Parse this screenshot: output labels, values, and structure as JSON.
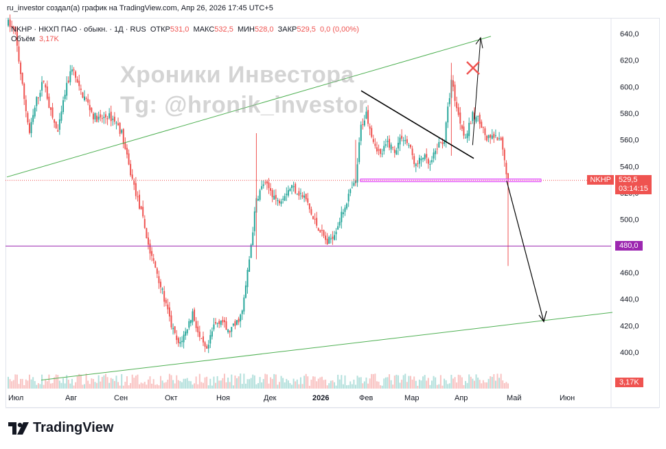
{
  "header": {
    "attribution": "ru_investor создал(а) график на TradingView.com, Апр 26, 2026 17:45 UTC+5"
  },
  "legend": {
    "symbol": "NKHP · НКХП ПАО · обыкн. · 1Д · RUS",
    "open_label": "ОТКР",
    "open": "531,0",
    "high_label": "МАКС",
    "high": "532,5",
    "low_label": "МИН",
    "low": "528,0",
    "close_label": "ЗАКР",
    "close": "529,5",
    "change": "0,0 (0,00%)",
    "volume_label": "Объём",
    "volume": "3,17K"
  },
  "watermark": {
    "line1": "Хроники Инвестора",
    "line2": "Tg: @hronik_investor"
  },
  "price_tags": {
    "ticker": "NKHP",
    "last": "529,5",
    "countdown": "03:14:15",
    "level": "480,0",
    "volume": "3,17K"
  },
  "footer": {
    "brand": "TradingView"
  },
  "colors": {
    "up": "#26a69a",
    "down": "#ef5350",
    "trend": "#4caf50",
    "level": "#9c27b0",
    "pink": "#e040fb",
    "accent": "#ef5350"
  },
  "chart_data": {
    "type": "candlestick",
    "symbol": "NKHP",
    "y_axis": {
      "min": 380,
      "max": 650,
      "ticks": [
        400,
        420,
        440,
        460,
        480,
        500,
        520,
        540,
        560,
        580,
        600,
        620,
        640
      ]
    },
    "y_tick_labels": [
      "400,0",
      "420,0",
      "440,0",
      "460,0",
      "480,0",
      "500,0",
      "520,0",
      "540,0",
      "560,0",
      "580,0",
      "600,0",
      "620,0",
      "640,0"
    ],
    "x_tick_labels": [
      "Июл",
      "Авг",
      "Сен",
      "Окт",
      "Ноя",
      "Дек",
      "2026",
      "Фев",
      "Мар",
      "Апр",
      "Май",
      "Июн"
    ],
    "close_path": [
      {
        "t": 0,
        "p": 648
      },
      {
        "t": 4,
        "p": 640
      },
      {
        "t": 8,
        "p": 600
      },
      {
        "t": 12,
        "p": 565
      },
      {
        "t": 16,
        "p": 590
      },
      {
        "t": 20,
        "p": 605
      },
      {
        "t": 24,
        "p": 580
      },
      {
        "t": 28,
        "p": 565
      },
      {
        "t": 32,
        "p": 595
      },
      {
        "t": 36,
        "p": 615
      },
      {
        "t": 40,
        "p": 598
      },
      {
        "t": 44,
        "p": 590
      },
      {
        "t": 48,
        "p": 578
      },
      {
        "t": 52,
        "p": 575
      },
      {
        "t": 56,
        "p": 578
      },
      {
        "t": 60,
        "p": 575
      },
      {
        "t": 64,
        "p": 565
      },
      {
        "t": 68,
        "p": 540
      },
      {
        "t": 72,
        "p": 520
      },
      {
        "t": 76,
        "p": 500
      },
      {
        "t": 80,
        "p": 475
      },
      {
        "t": 84,
        "p": 460
      },
      {
        "t": 88,
        "p": 440
      },
      {
        "t": 92,
        "p": 420
      },
      {
        "t": 96,
        "p": 405
      },
      {
        "t": 100,
        "p": 415
      },
      {
        "t": 104,
        "p": 430
      },
      {
        "t": 108,
        "p": 410
      },
      {
        "t": 112,
        "p": 400
      },
      {
        "t": 116,
        "p": 420
      },
      {
        "t": 120,
        "p": 425
      },
      {
        "t": 124,
        "p": 415
      },
      {
        "t": 128,
        "p": 420
      },
      {
        "t": 132,
        "p": 430
      },
      {
        "t": 136,
        "p": 470
      },
      {
        "t": 140,
        "p": 515
      },
      {
        "t": 144,
        "p": 527
      },
      {
        "t": 148,
        "p": 522
      },
      {
        "t": 152,
        "p": 513
      },
      {
        "t": 156,
        "p": 520
      },
      {
        "t": 160,
        "p": 525
      },
      {
        "t": 164,
        "p": 520
      },
      {
        "t": 168,
        "p": 515
      },
      {
        "t": 172,
        "p": 500
      },
      {
        "t": 176,
        "p": 492
      },
      {
        "t": 180,
        "p": 482
      },
      {
        "t": 184,
        "p": 490
      },
      {
        "t": 188,
        "p": 503
      },
      {
        "t": 192,
        "p": 518
      },
      {
        "t": 196,
        "p": 528
      },
      {
        "t": 199,
        "p": 570
      },
      {
        "t": 202,
        "p": 580
      },
      {
        "t": 206,
        "p": 560
      },
      {
        "t": 210,
        "p": 548
      },
      {
        "t": 214,
        "p": 558
      },
      {
        "t": 218,
        "p": 552
      },
      {
        "t": 222,
        "p": 563
      },
      {
        "t": 226,
        "p": 556
      },
      {
        "t": 230,
        "p": 540
      },
      {
        "t": 234,
        "p": 548
      },
      {
        "t": 238,
        "p": 540
      },
      {
        "t": 242,
        "p": 555
      },
      {
        "t": 246,
        "p": 560
      },
      {
        "t": 250,
        "p": 605
      },
      {
        "t": 254,
        "p": 578
      },
      {
        "t": 258,
        "p": 562
      },
      {
        "t": 262,
        "p": 578
      },
      {
        "t": 266,
        "p": 575
      },
      {
        "t": 270,
        "p": 560
      },
      {
        "t": 274,
        "p": 562
      },
      {
        "t": 278,
        "p": 558
      },
      {
        "t": 282,
        "p": 529.5
      }
    ],
    "support_line": 480,
    "current_price": 529.5,
    "annotations": {
      "watermark": "Хроники Инвестора",
      "channel": "ascending"
    }
  }
}
